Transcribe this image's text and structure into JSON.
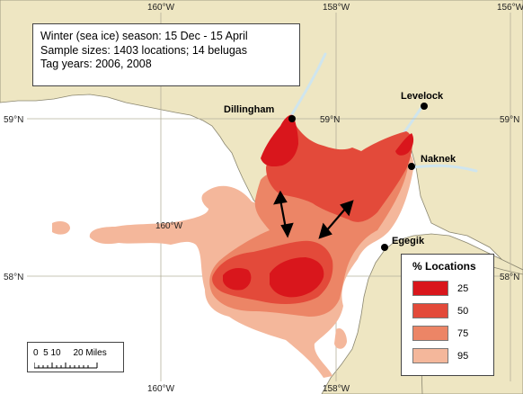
{
  "map_title": {
    "lines": [
      "Winter (sea ice) season:  15 Dec - 15 April",
      "Sample sizes:  1403 locations; 14 belugas",
      "Tag years: 2006, 2008"
    ]
  },
  "graticule": {
    "longitude_ticks": [
      "160°W",
      "158°W",
      "156°W"
    ],
    "latitude_ticks": [
      "59°N",
      "58°N"
    ]
  },
  "places": [
    "Dillingham",
    "Levelock",
    "Naknek",
    "Egegik"
  ],
  "legend": {
    "title": "% Locations",
    "items": [
      {
        "label": "25",
        "color": "#d9161c"
      },
      {
        "label": "50",
        "color": "#e34a3a"
      },
      {
        "label": "75",
        "color": "#ec8566"
      },
      {
        "label": "95",
        "color": "#f4b79b"
      }
    ]
  },
  "scale_bar": {
    "label": "0  5 10     20 Miles"
  },
  "colors": {
    "water": "#ffffff",
    "land": "#eee6c2",
    "land_outline": "#8a8670",
    "river": "#cfe5ee"
  }
}
